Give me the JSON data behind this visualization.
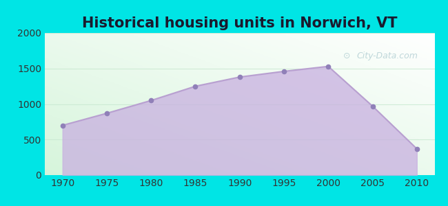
{
  "title": "Historical housing units in Norwich, VT",
  "years": [
    1970,
    1975,
    1980,
    1985,
    1990,
    1995,
    2000,
    2005,
    2010
  ],
  "values": [
    700,
    870,
    1050,
    1250,
    1380,
    1460,
    1530,
    970,
    370
  ],
  "ylim": [
    0,
    2000
  ],
  "xlim": [
    1968,
    2012
  ],
  "yticks": [
    0,
    500,
    1000,
    1500,
    2000
  ],
  "xticks": [
    1970,
    1975,
    1980,
    1985,
    1990,
    1995,
    2000,
    2005,
    2010
  ],
  "fill_color": "#c8b0e0",
  "fill_alpha": 0.75,
  "line_color": "#b8a0d0",
  "marker_color": "#9080b8",
  "outer_bg": "#00e5e5",
  "title_fontsize": 15,
  "tick_fontsize": 10,
  "watermark_text": "City-Data.com",
  "watermark_color": "#90b8c0",
  "watermark_alpha": 0.55,
  "grid_color": "#c8e8d0",
  "grid_alpha": 0.8
}
